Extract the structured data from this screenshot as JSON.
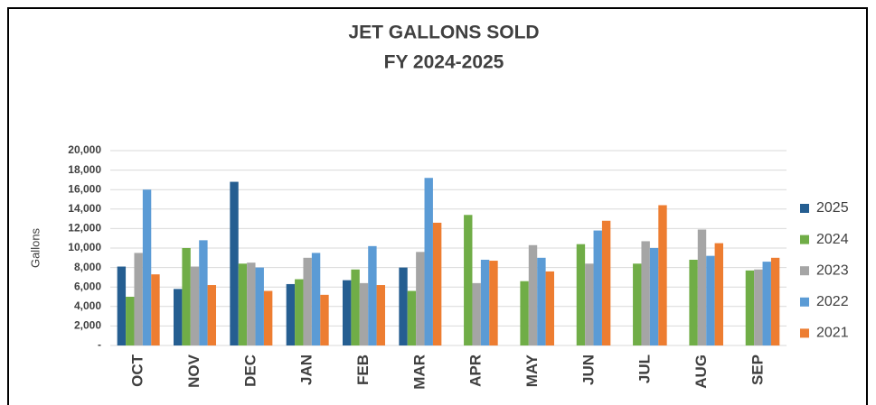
{
  "chart_data": {
    "type": "bar",
    "title": "JET GALLONS SOLD",
    "subtitle": "FY 2024-2025",
    "y_label": "Gallons",
    "categories": [
      "OCT",
      "NOV",
      "DEC",
      "JAN",
      "FEB",
      "MAR",
      "APR",
      "MAY",
      "JUN",
      "JUL",
      "AUG",
      "SEP"
    ],
    "series": [
      {
        "name": "2025",
        "color": "#255e91",
        "values": [
          8100,
          5800,
          16800,
          6300,
          6700,
          8000,
          null,
          null,
          null,
          null,
          null,
          null
        ]
      },
      {
        "name": "2024",
        "color": "#70ad47",
        "values": [
          5000,
          10000,
          8400,
          6800,
          7800,
          5600,
          13400,
          6600,
          10400,
          8400,
          8800,
          7700
        ]
      },
      {
        "name": "2023",
        "color": "#a5a5a5",
        "values": [
          9500,
          8100,
          8500,
          9000,
          6400,
          9600,
          6400,
          10300,
          8400,
          10700,
          11900,
          7800
        ]
      },
      {
        "name": "2022",
        "color": "#5b9bd5",
        "values": [
          16000,
          10800,
          8000,
          9500,
          10200,
          17200,
          8800,
          9000,
          11800,
          10000,
          9200,
          8600
        ]
      },
      {
        "name": "2021",
        "color": "#ed7d31",
        "values": [
          7300,
          6200,
          5600,
          5200,
          6200,
          12600,
          8700,
          7600,
          12800,
          14400,
          10500,
          9000
        ]
      }
    ],
    "ylim": [
      0,
      20000
    ],
    "yticks": [
      {
        "value": 0,
        "label": "-"
      },
      {
        "value": 2000,
        "label": "2,000"
      },
      {
        "value": 4000,
        "label": "4,000"
      },
      {
        "value": 6000,
        "label": "6,000"
      },
      {
        "value": 8000,
        "label": "8,000"
      },
      {
        "value": 10000,
        "label": "10,000"
      },
      {
        "value": 12000,
        "label": "12,000"
      },
      {
        "value": 14000,
        "label": "14,000"
      },
      {
        "value": 16000,
        "label": "16,000"
      },
      {
        "value": 18000,
        "label": "18,000"
      },
      {
        "value": 20000,
        "label": "20,000"
      }
    ],
    "grid": true,
    "legend": "right"
  }
}
